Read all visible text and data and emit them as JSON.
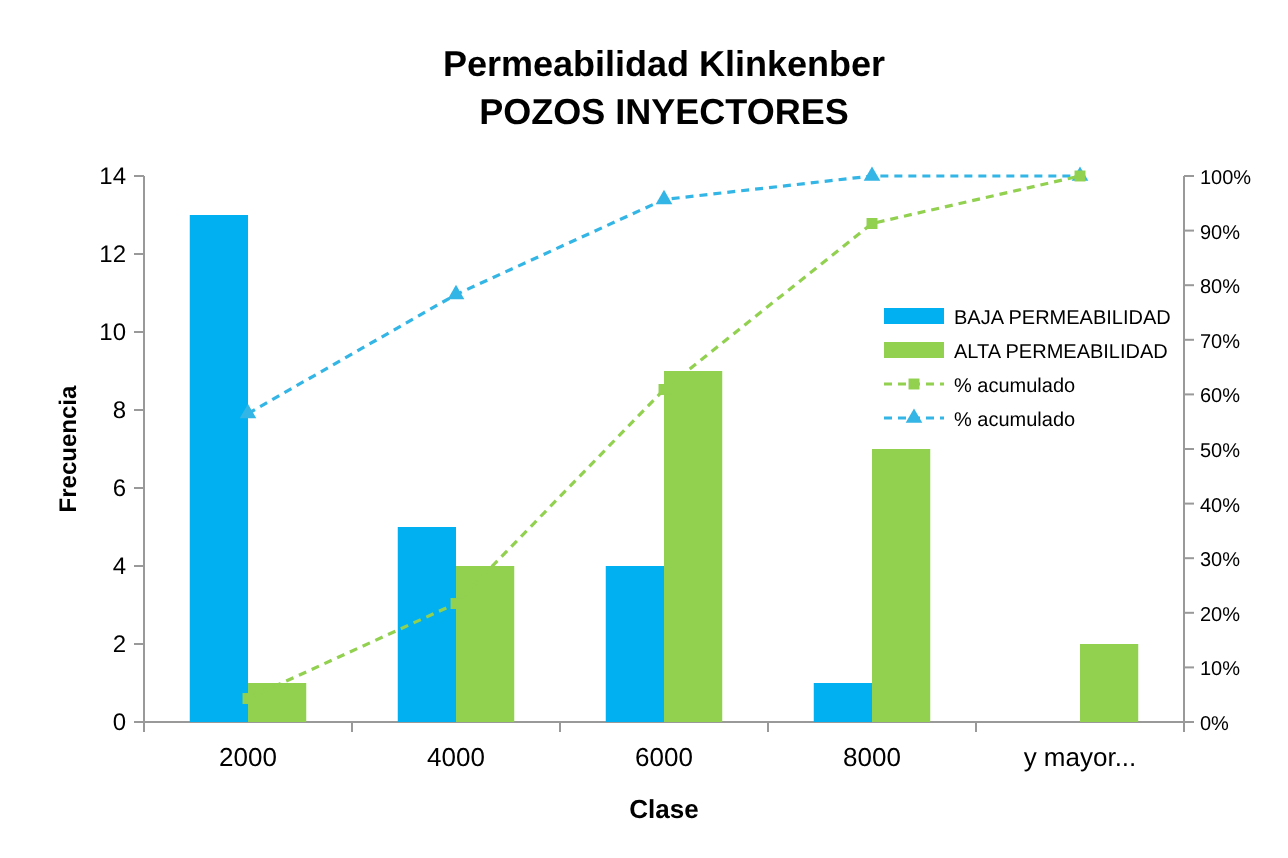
{
  "chart_data": {
    "type": "bar",
    "title": "Permeabilidad Klinkenber\nPOZOS INYECTORES",
    "xlabel": "Clase",
    "ylabel": "Frecuencia",
    "categories": [
      "2000",
      "4000",
      "6000",
      "8000",
      "y mayor..."
    ],
    "series": [
      {
        "name": "BAJA PERMEABILIDAD",
        "color": "#00b0f0",
        "values": [
          13,
          5,
          4,
          1,
          0
        ]
      },
      {
        "name": "ALTA PERMEABILIDAD",
        "color": "#92d050",
        "values": [
          1,
          4,
          9,
          7,
          2
        ]
      },
      {
        "name": "% acumulado",
        "type": "line",
        "axis": "y2",
        "color": "#92d050",
        "marker": "square",
        "line_style": "dashed",
        "values": [
          4.3,
          21.7,
          60.9,
          91.3,
          100
        ]
      },
      {
        "name": "% acumulado",
        "type": "line",
        "axis": "y2",
        "color": "#33b5e5",
        "marker": "triangle",
        "line_style": "dashed",
        "values": [
          56.5,
          78.3,
          95.7,
          100,
          100
        ]
      }
    ],
    "ylim": [
      0,
      14
    ],
    "yticks": [
      0,
      2,
      4,
      6,
      8,
      10,
      12,
      14
    ],
    "y2lim": [
      0,
      100
    ],
    "y2ticks": [
      {
        "value": 0,
        "label": "0%"
      },
      {
        "value": 10,
        "label": "10%"
      },
      {
        "value": 20,
        "label": "20%"
      },
      {
        "value": 30,
        "label": "30%"
      },
      {
        "value": 40,
        "label": "40%"
      },
      {
        "value": 50,
        "label": "50%"
      },
      {
        "value": 60,
        "label": "60%"
      },
      {
        "value": 70,
        "label": "70%"
      },
      {
        "value": 80,
        "label": "80%"
      },
      {
        "value": 90,
        "label": "90%"
      },
      {
        "value": 100,
        "label": "100%"
      }
    ],
    "grid": false,
    "legend": "right"
  }
}
